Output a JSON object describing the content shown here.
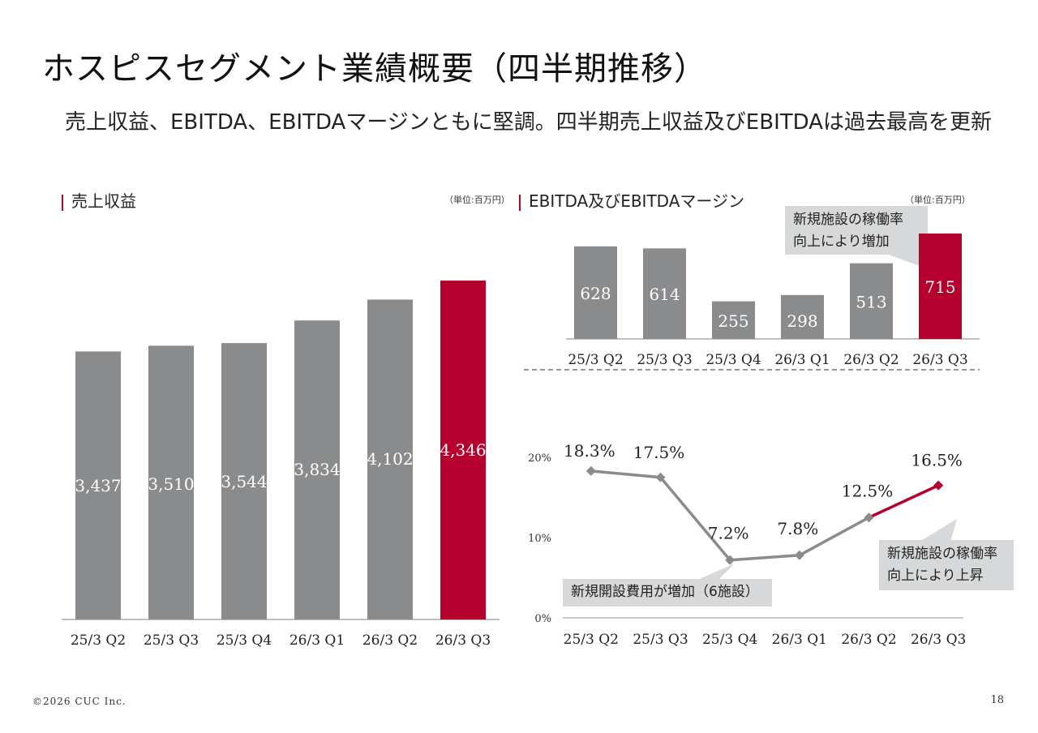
{
  "page": {
    "title": "ホスピスセグメント業績概要（四半期推移）",
    "subtitle": "売上収益、EBITDA、EBITDAマージンともに堅調。四半期売上収益及びEBITDAは過去最高を更新",
    "footer_copyright": "©2026 CUC Inc.",
    "page_number": "18",
    "colors": {
      "accent": "#b5002e",
      "bar": "#898b8d",
      "callout": "#d6d8d9",
      "axis": "#999999"
    }
  },
  "revenue_section": {
    "heading": "売上収益",
    "unit": "（単位:百万円）"
  },
  "ebitda_section": {
    "heading": "EBITDA及びEBITDAマージン",
    "unit": "（単位:百万円）"
  },
  "callouts": {
    "ebitda_increase": [
      "新規施設の稼働率",
      "向上により増加"
    ],
    "margin_drop": "新規開設費用が増加（6施設）",
    "margin_rise": [
      "新規施設の稼働率",
      "向上により上昇"
    ]
  },
  "chart_data": [
    {
      "id": "revenue",
      "type": "bar",
      "title": "売上収益",
      "unit": "百万円",
      "categories": [
        "25/3 Q2",
        "25/3 Q3",
        "25/3 Q4",
        "26/3 Q1",
        "26/3 Q2",
        "26/3 Q3"
      ],
      "values": [
        3437,
        3510,
        3544,
        3834,
        4102,
        4346
      ],
      "labels": [
        "3,437",
        "3,510",
        "3,544",
        "3,834",
        "4,102",
        "4,346"
      ],
      "highlight_index": 5,
      "ylim": [
        0,
        4346
      ],
      "grid": false
    },
    {
      "id": "ebitda",
      "type": "bar",
      "title": "EBITDA",
      "unit": "百万円",
      "categories": [
        "25/3 Q2",
        "25/3 Q3",
        "25/3 Q4",
        "26/3 Q1",
        "26/3 Q2",
        "26/3 Q3"
      ],
      "values": [
        628,
        614,
        255,
        298,
        513,
        715
      ],
      "labels": [
        "628",
        "614",
        "255",
        "298",
        "513",
        "715"
      ],
      "highlight_index": 5,
      "grid": false
    },
    {
      "id": "ebitda_margin",
      "type": "line",
      "title": "EBITDAマージン",
      "categories": [
        "25/3 Q2",
        "25/3 Q3",
        "25/3 Q4",
        "26/3 Q1",
        "26/3 Q2",
        "26/3 Q3"
      ],
      "values": [
        18.3,
        17.5,
        7.2,
        7.8,
        12.5,
        16.5
      ],
      "labels": [
        "18.3%",
        "17.5%",
        "7.2%",
        "7.8%",
        "12.5%",
        "16.5%"
      ],
      "highlight_index": 5,
      "yticks": [
        "0%",
        "10%",
        "20%"
      ],
      "ylim": [
        0,
        20
      ],
      "grid": false
    }
  ]
}
